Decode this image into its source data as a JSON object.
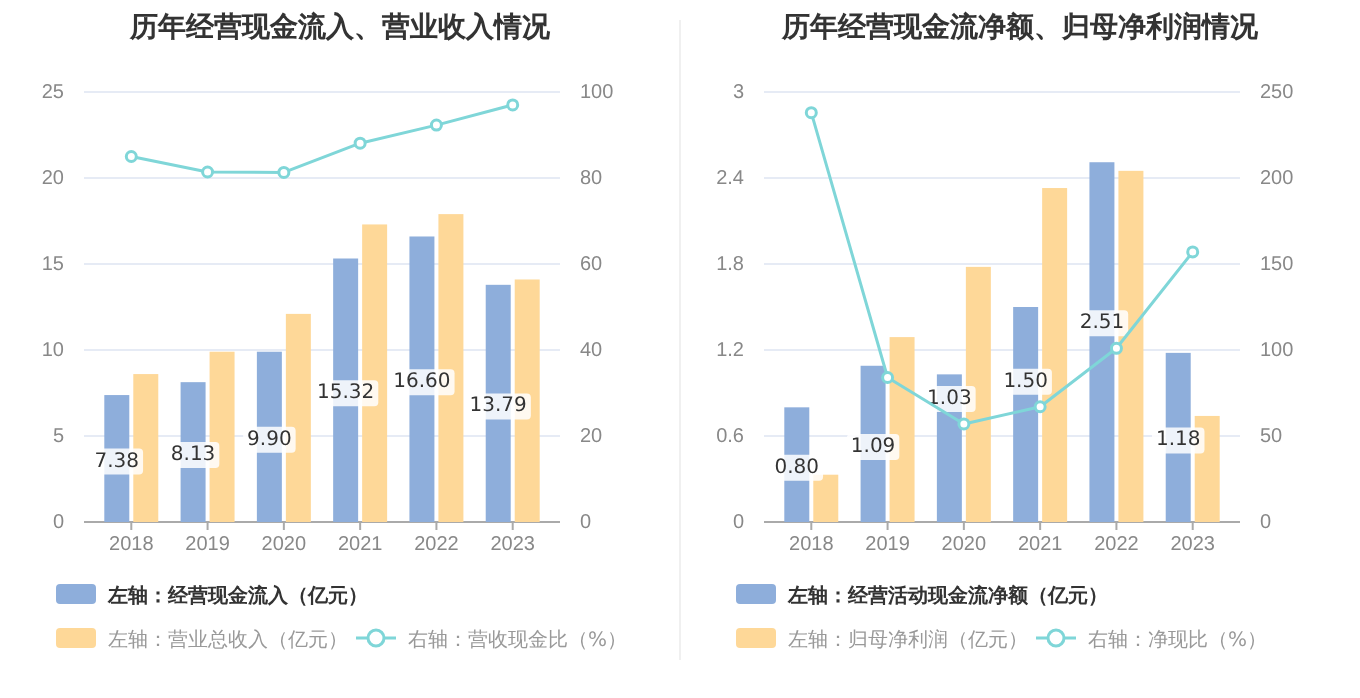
{
  "chart_data": [
    {
      "type": "bar",
      "title": "历年经营现金流入、营业收入情况",
      "categories": [
        "2018",
        "2019",
        "2020",
        "2021",
        "2022",
        "2023"
      ],
      "ylim": [
        0,
        25
      ],
      "yticks": [
        0,
        5,
        10,
        15,
        20,
        25
      ],
      "y2lim": [
        0,
        100
      ],
      "y2ticks": [
        0,
        20,
        40,
        60,
        80,
        100
      ],
      "grid": "y",
      "legend": "bottom",
      "series": [
        {
          "name": "左轴：经营现金流入（亿元）",
          "type": "bar",
          "color": "#8eaedb",
          "values": [
            7.38,
            8.13,
            9.9,
            15.32,
            16.6,
            13.79
          ],
          "value_labels": [
            "7.38",
            "8.13",
            "9.90",
            "15.32",
            "16.60",
            "13.79"
          ]
        },
        {
          "name": "左轴：营业总收入（亿元）",
          "type": "bar",
          "color": "#fed898",
          "values": [
            8.6,
            9.9,
            12.1,
            17.3,
            17.9,
            14.1
          ]
        },
        {
          "name": "右轴：营收现金比（%）",
          "type": "line",
          "axis": "y2",
          "color": "#7fd6d8",
          "marker": "circle",
          "values": [
            85,
            81.4,
            81.3,
            88.1,
            92.3,
            97
          ]
        }
      ]
    },
    {
      "type": "bar",
      "title": "历年经营现金流净额、归母净利润情况",
      "categories": [
        "2018",
        "2019",
        "2020",
        "2021",
        "2022",
        "2023"
      ],
      "ylim": [
        0,
        3
      ],
      "yticks": [
        0,
        0.6,
        1.2,
        1.8,
        2.4,
        3
      ],
      "y2lim": [
        0,
        250
      ],
      "y2ticks": [
        0,
        50,
        100,
        150,
        200,
        250
      ],
      "grid": "y",
      "legend": "bottom",
      "series": [
        {
          "name": "左轴：经营活动现金流净额（亿元）",
          "type": "bar",
          "color": "#8eaedb",
          "values": [
            0.8,
            1.09,
            1.03,
            1.5,
            2.51,
            1.18
          ],
          "value_labels": [
            "0.80",
            "1.09",
            "1.03",
            "1.50",
            "2.51",
            "1.18"
          ]
        },
        {
          "name": "左轴：归母净利润（亿元）",
          "type": "bar",
          "color": "#fed898",
          "values": [
            0.33,
            1.29,
            1.78,
            2.33,
            2.45,
            0.74
          ]
        },
        {
          "name": "右轴：净现比（%）",
          "type": "line",
          "axis": "y2",
          "color": "#7fd6d8",
          "marker": "circle",
          "values": [
            238,
            84,
            57,
            67,
            101,
            157
          ]
        }
      ]
    }
  ]
}
